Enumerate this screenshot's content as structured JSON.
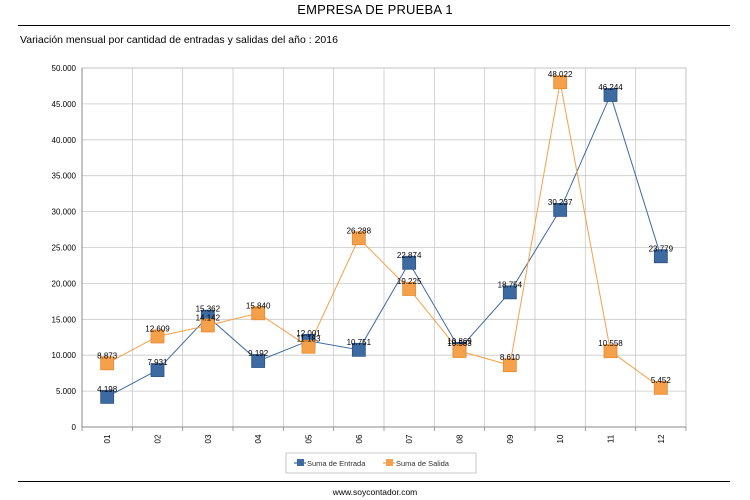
{
  "header": {
    "title": "EMPRESA DE PRUEBA 1",
    "subtitle": "Variación mensual por cantidad de entradas y salidas del año : 2016"
  },
  "footer": {
    "text": "www.soycontador.com"
  },
  "chart_data": {
    "type": "line",
    "categories": [
      "01",
      "02",
      "03",
      "04",
      "05",
      "06",
      "07",
      "08",
      "09",
      "10",
      "11",
      "12"
    ],
    "ylim": [
      0,
      50000
    ],
    "y_ticks": [
      "0",
      "5.000",
      "10.000",
      "15.000",
      "20.000",
      "25.000",
      "30.000",
      "35.000",
      "40.000",
      "45.000",
      "50.000"
    ],
    "y_tick_values": [
      0,
      5000,
      10000,
      15000,
      20000,
      25000,
      30000,
      35000,
      40000,
      45000,
      50000
    ],
    "grid": true,
    "legend_position": "bottom",
    "series": [
      {
        "name": "Suma de Entrada",
        "color": "#3d6aa0",
        "values": [
          4198,
          7931,
          15362,
          9192,
          12001,
          10751,
          22874,
          10869,
          18754,
          30237,
          46244,
          23779
        ],
        "labels": [
          "4.198",
          "7.931",
          "15.362",
          "9.192",
          "12.001",
          "10.751",
          "22.874",
          "10.869",
          "18.754",
          "30.237",
          "46.244",
          "23.779"
        ]
      },
      {
        "name": "Suma de Salida",
        "color": "#f5a04a",
        "values": [
          8873,
          12609,
          14142,
          15840,
          11183,
          26288,
          19225,
          10583,
          8610,
          48022,
          10558,
          5452
        ],
        "labels": [
          "8.873",
          "12.609",
          "14.142",
          "15.840",
          "11.183",
          "26.288",
          "19.225",
          "10.583",
          "8.610",
          "48.022",
          "10.558",
          "5.452"
        ]
      }
    ]
  }
}
